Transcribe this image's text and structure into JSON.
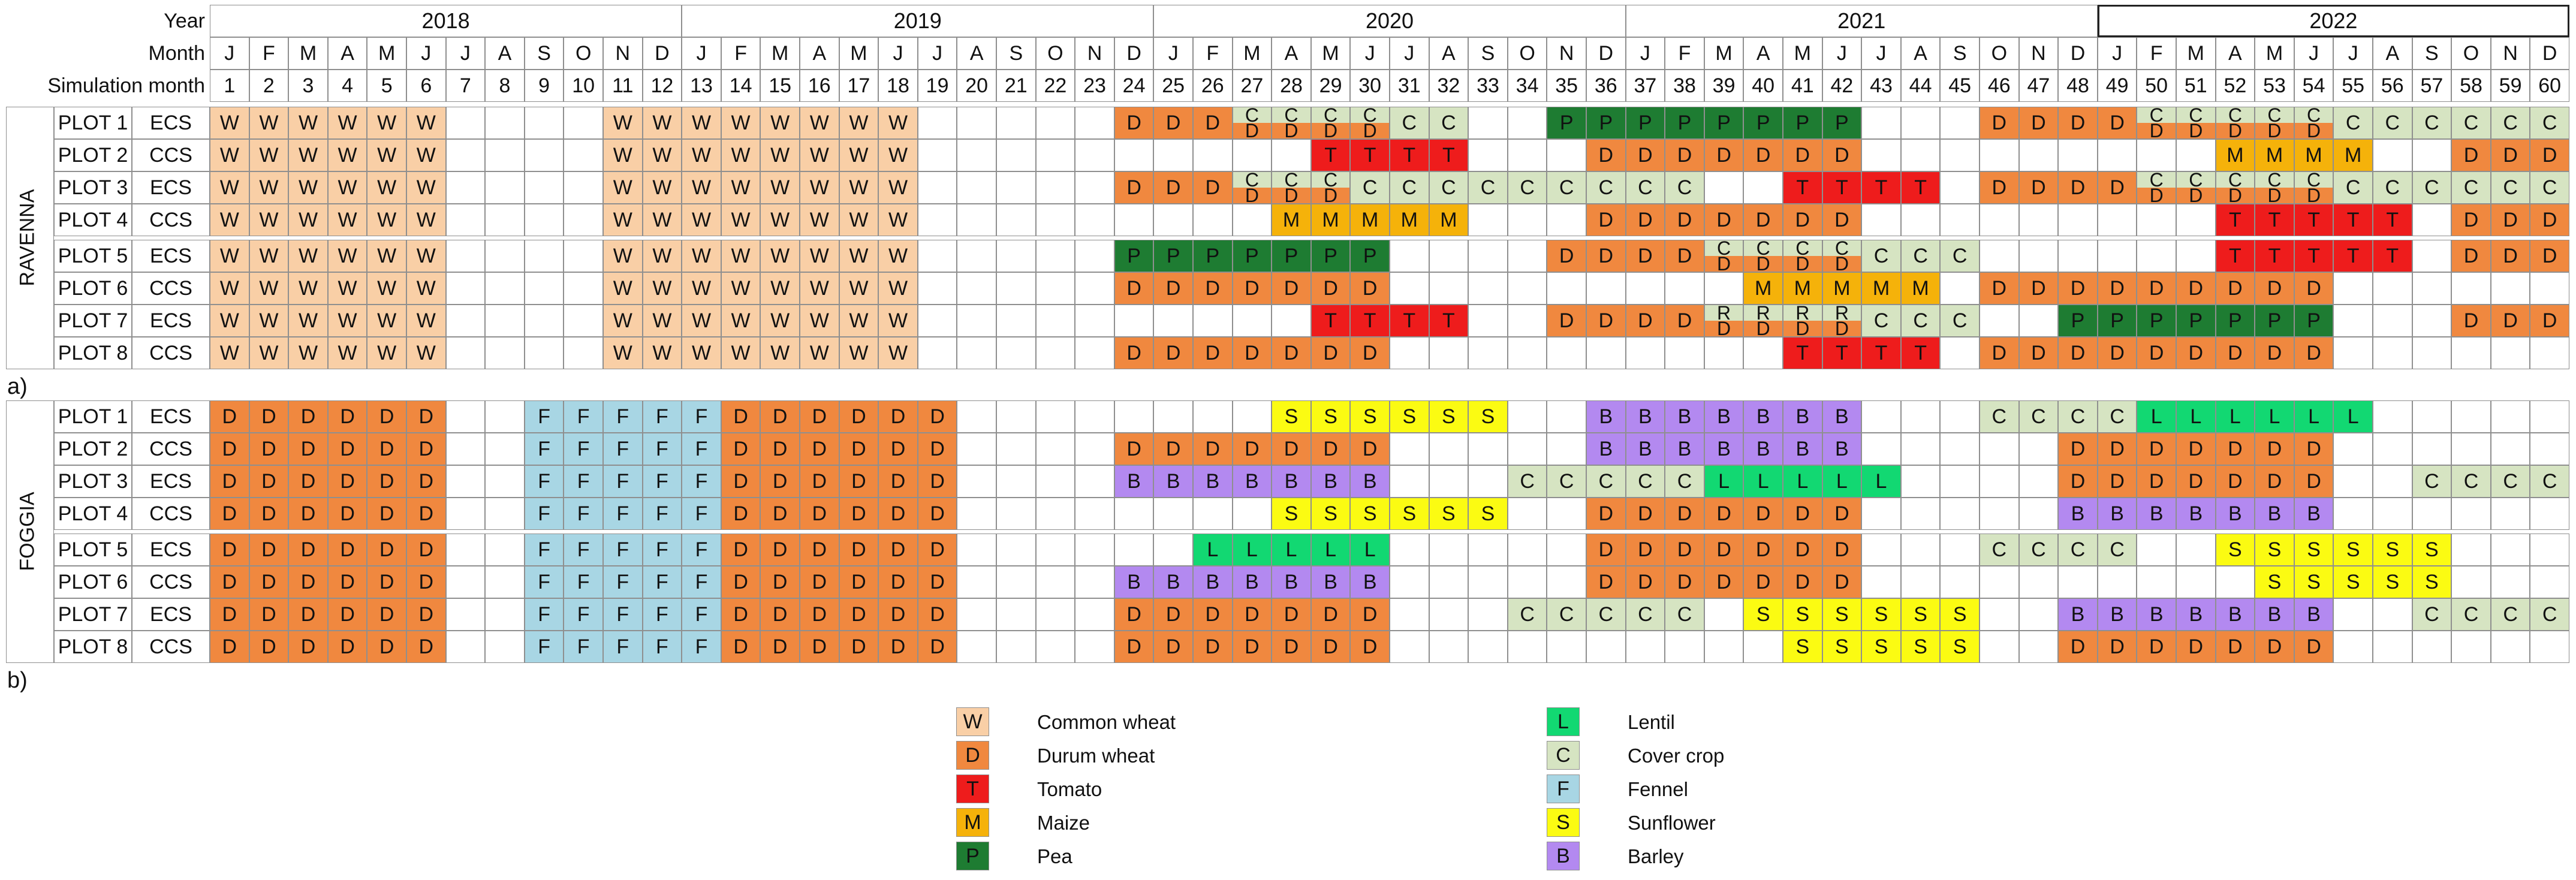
{
  "header_labels": {
    "year": "Year",
    "month": "Month",
    "simulation_month": "Simulation month"
  },
  "years": [
    "2018",
    "2019",
    "2020",
    "2021",
    "2022"
  ],
  "months": [
    "J",
    "F",
    "M",
    "A",
    "M",
    "J",
    "J",
    "A",
    "S",
    "O",
    "N",
    "D",
    "J",
    "F",
    "M",
    "A",
    "M",
    "J",
    "J",
    "A",
    "S",
    "O",
    "N",
    "D",
    "J",
    "F",
    "M",
    "A",
    "M",
    "J",
    "J",
    "A",
    "S",
    "O",
    "N",
    "D",
    "J",
    "F",
    "M",
    "A",
    "M",
    "J",
    "J",
    "A",
    "S",
    "O",
    "N",
    "D",
    "J",
    "F",
    "M",
    "A",
    "M",
    "J",
    "J",
    "A",
    "S",
    "O",
    "N",
    "D"
  ],
  "panels": [
    {
      "site": "RAVENNA",
      "letter": "a)",
      "rows": [
        {
          "plot": "PLOT 1",
          "sys": "ECS",
          "crops": [
            {
              "s": 1,
              "e": 6,
              "c": "W"
            },
            {
              "s": 11,
              "e": 18,
              "c": "W"
            },
            {
              "s": 24,
              "e": 26,
              "c": "D"
            },
            {
              "s": 27,
              "e": 30,
              "c": "C/D"
            },
            {
              "s": 31,
              "e": 32,
              "c": "C"
            },
            {
              "s": 35,
              "e": 42,
              "c": "P"
            },
            {
              "s": 46,
              "e": 49,
              "c": "D"
            },
            {
              "s": 50,
              "e": 54,
              "c": "C/D"
            },
            {
              "s": 55,
              "e": 60,
              "c": "C"
            }
          ]
        },
        {
          "plot": "PLOT 2",
          "sys": "CCS",
          "crops": [
            {
              "s": 1,
              "e": 6,
              "c": "W"
            },
            {
              "s": 11,
              "e": 18,
              "c": "W"
            },
            {
              "s": 29,
              "e": 32,
              "c": "T"
            },
            {
              "s": 36,
              "e": 42,
              "c": "D"
            },
            {
              "s": 52,
              "e": 55,
              "c": "M"
            },
            {
              "s": 58,
              "e": 60,
              "c": "D"
            }
          ]
        },
        {
          "plot": "PLOT 3",
          "sys": "ECS",
          "crops": [
            {
              "s": 1,
              "e": 6,
              "c": "W"
            },
            {
              "s": 11,
              "e": 18,
              "c": "W"
            },
            {
              "s": 24,
              "e": 26,
              "c": "D"
            },
            {
              "s": 27,
              "e": 29,
              "c": "C/D"
            },
            {
              "s": 30,
              "e": 38,
              "c": "C"
            },
            {
              "s": 41,
              "e": 44,
              "c": "T"
            },
            {
              "s": 46,
              "e": 49,
              "c": "D"
            },
            {
              "s": 50,
              "e": 54,
              "c": "C/D"
            },
            {
              "s": 55,
              "e": 60,
              "c": "C"
            }
          ]
        },
        {
          "plot": "PLOT 4",
          "sys": "CCS",
          "crops": [
            {
              "s": 1,
              "e": 6,
              "c": "W"
            },
            {
              "s": 11,
              "e": 18,
              "c": "W"
            },
            {
              "s": 28,
              "e": 32,
              "c": "M"
            },
            {
              "s": 36,
              "e": 42,
              "c": "D"
            },
            {
              "s": 52,
              "e": 56,
              "c": "T"
            },
            {
              "s": 58,
              "e": 60,
              "c": "D"
            }
          ]
        },
        {
          "plot": "PLOT 5",
          "sys": "ECS",
          "crops": [
            {
              "s": 1,
              "e": 6,
              "c": "W"
            },
            {
              "s": 11,
              "e": 18,
              "c": "W"
            },
            {
              "s": 24,
              "e": 30,
              "c": "P"
            },
            {
              "s": 35,
              "e": 38,
              "c": "D"
            },
            {
              "s": 39,
              "e": 42,
              "c": "C/D"
            },
            {
              "s": 43,
              "e": 45,
              "c": "C"
            },
            {
              "s": 52,
              "e": 56,
              "c": "T"
            },
            {
              "s": 58,
              "e": 60,
              "c": "D"
            }
          ]
        },
        {
          "plot": "PLOT 6",
          "sys": "CCS",
          "crops": [
            {
              "s": 1,
              "e": 6,
              "c": "W"
            },
            {
              "s": 11,
              "e": 18,
              "c": "W"
            },
            {
              "s": 24,
              "e": 30,
              "c": "D"
            },
            {
              "s": 40,
              "e": 44,
              "c": "M"
            },
            {
              "s": 46,
              "e": 54,
              "c": "D"
            }
          ]
        },
        {
          "plot": "PLOT 7",
          "sys": "ECS",
          "crops": [
            {
              "s": 1,
              "e": 6,
              "c": "W"
            },
            {
              "s": 11,
              "e": 18,
              "c": "W"
            },
            {
              "s": 29,
              "e": 32,
              "c": "T"
            },
            {
              "s": 35,
              "e": 38,
              "c": "D"
            },
            {
              "s": 39,
              "e": 42,
              "c": "R/D"
            },
            {
              "s": 43,
              "e": 45,
              "c": "C"
            },
            {
              "s": 48,
              "e": 54,
              "c": "P"
            },
            {
              "s": 58,
              "e": 60,
              "c": "D"
            }
          ]
        },
        {
          "plot": "PLOT 8",
          "sys": "CCS",
          "crops": [
            {
              "s": 1,
              "e": 6,
              "c": "W"
            },
            {
              "s": 11,
              "e": 18,
              "c": "W"
            },
            {
              "s": 24,
              "e": 30,
              "c": "D"
            },
            {
              "s": 41,
              "e": 44,
              "c": "T"
            },
            {
              "s": 46,
              "e": 54,
              "c": "D"
            }
          ]
        }
      ]
    },
    {
      "site": "FOGGIA",
      "letter": "b)",
      "rows": [
        {
          "plot": "PLOT 1",
          "sys": "ECS",
          "crops": [
            {
              "s": 1,
              "e": 6,
              "c": "D"
            },
            {
              "s": 9,
              "e": 13,
              "c": "F"
            },
            {
              "s": 14,
              "e": 19,
              "c": "D"
            },
            {
              "s": 28,
              "e": 33,
              "c": "S"
            },
            {
              "s": 36,
              "e": 42,
              "c": "B"
            },
            {
              "s": 46,
              "e": 49,
              "c": "C"
            },
            {
              "s": 50,
              "e": 55,
              "c": "L"
            }
          ]
        },
        {
          "plot": "PLOT 2",
          "sys": "CCS",
          "crops": [
            {
              "s": 1,
              "e": 6,
              "c": "D"
            },
            {
              "s": 9,
              "e": 13,
              "c": "F"
            },
            {
              "s": 14,
              "e": 19,
              "c": "D"
            },
            {
              "s": 24,
              "e": 30,
              "c": "D"
            },
            {
              "s": 36,
              "e": 42,
              "c": "B"
            },
            {
              "s": 48,
              "e": 54,
              "c": "D"
            }
          ]
        },
        {
          "plot": "PLOT 3",
          "sys": "ECS",
          "crops": [
            {
              "s": 1,
              "e": 6,
              "c": "D"
            },
            {
              "s": 9,
              "e": 13,
              "c": "F"
            },
            {
              "s": 14,
              "e": 19,
              "c": "D"
            },
            {
              "s": 24,
              "e": 30,
              "c": "B"
            },
            {
              "s": 34,
              "e": 38,
              "c": "C"
            },
            {
              "s": 39,
              "e": 43,
              "c": "L"
            },
            {
              "s": 48,
              "e": 54,
              "c": "D"
            },
            {
              "s": 57,
              "e": 60,
              "c": "C"
            }
          ]
        },
        {
          "plot": "PLOT 4",
          "sys": "CCS",
          "crops": [
            {
              "s": 1,
              "e": 6,
              "c": "D"
            },
            {
              "s": 9,
              "e": 13,
              "c": "F"
            },
            {
              "s": 14,
              "e": 19,
              "c": "D"
            },
            {
              "s": 28,
              "e": 33,
              "c": "S"
            },
            {
              "s": 36,
              "e": 42,
              "c": "D"
            },
            {
              "s": 48,
              "e": 54,
              "c": "B"
            }
          ]
        },
        {
          "plot": "PLOT 5",
          "sys": "ECS",
          "crops": [
            {
              "s": 1,
              "e": 6,
              "c": "D"
            },
            {
              "s": 9,
              "e": 13,
              "c": "F"
            },
            {
              "s": 14,
              "e": 19,
              "c": "D"
            },
            {
              "s": 26,
              "e": 30,
              "c": "L"
            },
            {
              "s": 36,
              "e": 42,
              "c": "D"
            },
            {
              "s": 46,
              "e": 49,
              "c": "C"
            },
            {
              "s": 52,
              "e": 57,
              "c": "S"
            }
          ]
        },
        {
          "plot": "PLOT 6",
          "sys": "CCS",
          "crops": [
            {
              "s": 1,
              "e": 6,
              "c": "D"
            },
            {
              "s": 9,
              "e": 13,
              "c": "F"
            },
            {
              "s": 14,
              "e": 19,
              "c": "D"
            },
            {
              "s": 24,
              "e": 30,
              "c": "B"
            },
            {
              "s": 36,
              "e": 42,
              "c": "D"
            },
            {
              "s": 53,
              "e": 57,
              "c": "S"
            }
          ]
        },
        {
          "plot": "PLOT 7",
          "sys": "ECS",
          "crops": [
            {
              "s": 1,
              "e": 6,
              "c": "D"
            },
            {
              "s": 9,
              "e": 13,
              "c": "F"
            },
            {
              "s": 14,
              "e": 19,
              "c": "D"
            },
            {
              "s": 24,
              "e": 30,
              "c": "D"
            },
            {
              "s": 34,
              "e": 38,
              "c": "C"
            },
            {
              "s": 40,
              "e": 45,
              "c": "S"
            },
            {
              "s": 48,
              "e": 54,
              "c": "B"
            },
            {
              "s": 57,
              "e": 60,
              "c": "C"
            }
          ]
        },
        {
          "plot": "PLOT 8",
          "sys": "CCS",
          "crops": [
            {
              "s": 1,
              "e": 6,
              "c": "D"
            },
            {
              "s": 9,
              "e": 13,
              "c": "F"
            },
            {
              "s": 14,
              "e": 19,
              "c": "D"
            },
            {
              "s": 24,
              "e": 30,
              "c": "D"
            },
            {
              "s": 41,
              "e": 45,
              "c": "S"
            },
            {
              "s": 48,
              "e": 54,
              "c": "D"
            }
          ]
        }
      ]
    }
  ],
  "crop_colors": {
    "W": "#f9cfa6",
    "D": "#f0883f",
    "T": "#ee1c1c",
    "M": "#f5b20a",
    "P": "#1e7c32",
    "L": "#12d872",
    "C": "#d6e4c2",
    "F": "#a8d6e4",
    "S": "#fbfb12",
    "B": "#b389f0",
    "R": "#d6e4c2"
  },
  "legend": [
    {
      "code": "W",
      "label": "Common wheat"
    },
    {
      "code": "D",
      "label": "Durum wheat"
    },
    {
      "code": "T",
      "label": "Tomato"
    },
    {
      "code": "M",
      "label": "Maize"
    },
    {
      "code": "P",
      "label": "Pea"
    },
    {
      "code": "L",
      "label": "Lentil"
    },
    {
      "code": "C",
      "label": "Cover crop"
    },
    {
      "code": "F",
      "label": "Fennel"
    },
    {
      "code": "S",
      "label": "Sunflower"
    },
    {
      "code": "B",
      "label": "Barley"
    }
  ]
}
